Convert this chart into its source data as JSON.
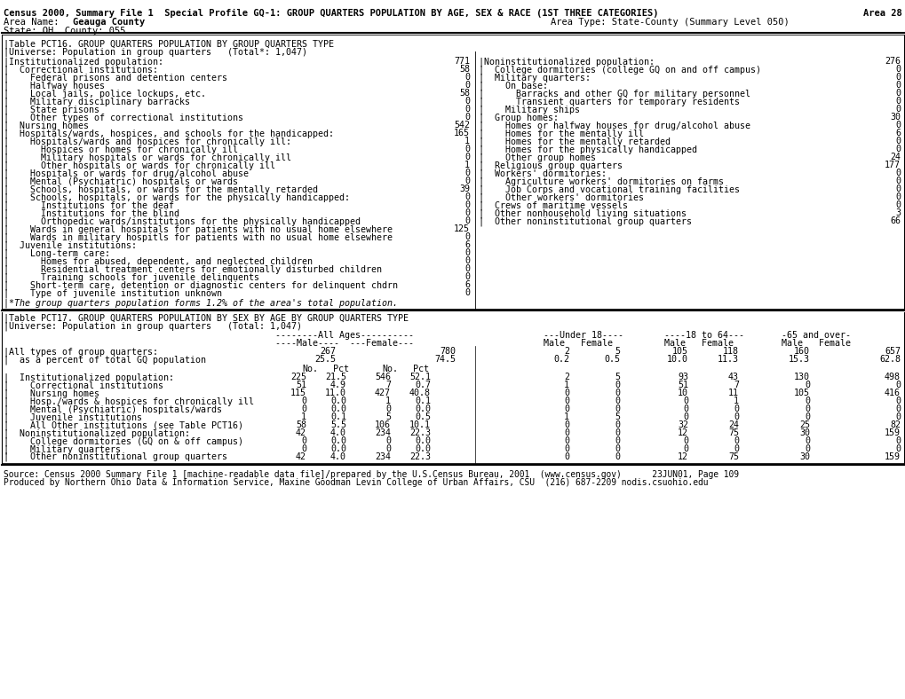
{
  "title_line1": "Census 2000, Summary File 1  Special Profile GQ-1: GROUP QUARTERS POPULATION BY AGE, SEX & RACE (1ST THREE CATEGORIES)",
  "title_area": "Area 28",
  "area_name_label": "Area Name: ",
  "area_name_bold": "Geauga County",
  "area_type": "Area Type: State-County (Summary Level 050)",
  "state_county": "State: OH  County: 055",
  "bg_color": "#ffffff",
  "font_size": 7.2,
  "title_font_size": 7.5,
  "table1_header": "|Table PCT16. GROUP QUARTERS POPULATION BY GROUP QUARTERS TYPE",
  "table1_universe": "|Universe: Population in group quarters   (Total*: 1,047)",
  "left_col": [
    [
      "|Institutionalized population:",
      "771"
    ],
    [
      "|  Correctional institutions:",
      "58"
    ],
    [
      "|    Federal prisons and detention centers",
      "0"
    ],
    [
      "|    Halfway houses",
      "0"
    ],
    [
      "|    Local jails, police lockups, etc.",
      "58"
    ],
    [
      "|    Military disciplinary barracks",
      "0"
    ],
    [
      "|    State prisons",
      "0"
    ],
    [
      "|    Other types of correctional institutions",
      "0"
    ],
    [
      "|  Nursing homes",
      "542"
    ],
    [
      "|  Hospitals/wards, hospices, and schools for the handicapped:",
      "165"
    ],
    [
      "|    Hospitals/wards and hospices for chronically ill:",
      "1"
    ],
    [
      "|      Hospices or homes for chronically ill",
      "0"
    ],
    [
      "|      Military hospitals or wards for chronically ill",
      "0"
    ],
    [
      "|      Other hospitals or wards for chronically ill",
      "1"
    ],
    [
      "|    Hospitals or wards for drug/alcohol abuse",
      "0"
    ],
    [
      "|    Mental (Psychiatric) hospitals or wards",
      "0"
    ],
    [
      "|    Schools, hospitals, or wards for the mentally retarded",
      "39"
    ],
    [
      "|    Schools, hospitals, or wards for the physically handicapped:",
      "0"
    ],
    [
      "|      Institutions for the deaf",
      "0"
    ],
    [
      "|      Institutions for the blind",
      "0"
    ],
    [
      "|      Orthopedic wards/institutions for the physically handicapped",
      "0"
    ],
    [
      "|    Wards in general hospitals for patients with no usual home elsewhere",
      "125"
    ],
    [
      "|    Wards in military hospitls for patients with no usual home elsewhere",
      "0"
    ],
    [
      "|  Juvenile institutions:",
      "6"
    ],
    [
      "|    Long-term care:",
      "0"
    ],
    [
      "|      Homes for abused, dependent, and neglected children",
      "0"
    ],
    [
      "|      Residential treatment centers for emotionally disturbed children",
      "0"
    ],
    [
      "|      Training schools for juvenile delinquents",
      "0"
    ],
    [
      "|    Short-term care, detention or diagnostic centers for delinquent chdrn",
      "6"
    ],
    [
      "|    Type of juvenile institution unknown",
      "0"
    ]
  ],
  "right_col": [
    [
      "|Noninstitutionalized population:",
      "276"
    ],
    [
      "|  College dormitories (college GQ on and off campus)",
      "0"
    ],
    [
      "|  Military quarters:",
      "0"
    ],
    [
      "|    On base:",
      "0"
    ],
    [
      "|      Barracks and other GQ for military personnel",
      "0"
    ],
    [
      "|      Transient quarters for temporary residents",
      "0"
    ],
    [
      "|    Military ships",
      "0"
    ],
    [
      "|  Group homes:",
      "30"
    ],
    [
      "|    Homes or halfway houses for drug/alcohol abuse",
      "0"
    ],
    [
      "|    Homes for the mentally ill",
      "6"
    ],
    [
      "|    Homes for the mentally retarded",
      "0"
    ],
    [
      "|    Homes for the physically handicapped",
      "0"
    ],
    [
      "|    Other group homes",
      "24"
    ],
    [
      "|  Religious group quarters",
      "177"
    ],
    [
      "|  Workers' dormitories:",
      "0"
    ],
    [
      "|    Agriculture workers' dormitories on farms",
      "0"
    ],
    [
      "|    Job Corps and vocational training facilities",
      "0"
    ],
    [
      "|    Other workers' dormitories",
      "0"
    ],
    [
      "|  Crews of maritime vessels",
      "0"
    ],
    [
      "|  Other nonhousehold living situations",
      "3"
    ],
    [
      "|  Other noninstitutional group quarters",
      "66"
    ]
  ],
  "footnote": "|*The group quarters population forms 1.2% of the area's total population.",
  "table2_header": "|Table PCT17. GROUP QUARTERS POPULATION BY SEX BY AGE BY GROUP QUARTERS TYPE",
  "table2_universe": "|Universe: Population in group quarters   (Total: 1,047)",
  "table2_row1_label": "|All types of group quarters:",
  "table2_row1_vals": [
    "267",
    "780",
    "2",
    "5",
    "105",
    "118",
    "160",
    "657"
  ],
  "table2_pct_label": "|  as a percent of total GQ population",
  "table2_pct_vals": [
    "25.5",
    "74.5",
    "0.2",
    "0.5",
    "10.0",
    "11.3",
    "15.3",
    "62.8"
  ],
  "table2_rows": [
    [
      "|  Institutionalized population:",
      "225",
      "21.5",
      "546",
      "52.1",
      "2",
      "5",
      "93",
      "43",
      "130",
      "498"
    ],
    [
      "|    Correctional institutions",
      "51",
      "4.9",
      "7",
      "0.7",
      "1",
      "0",
      "51",
      "7",
      "0",
      "0"
    ],
    [
      "|    Nursing homes",
      "115",
      "11.0",
      "427",
      "40.8",
      "0",
      "0",
      "10",
      "11",
      "105",
      "416"
    ],
    [
      "|    Hosp./wards & hospices for chronically ill",
      "0",
      "0.0",
      "1",
      "0.1",
      "0",
      "0",
      "0",
      "1",
      "0",
      "0"
    ],
    [
      "|    Mental (Psychiatric) hospitals/wards",
      "0",
      "0.0",
      "0",
      "0.0",
      "0",
      "0",
      "0",
      "0",
      "0",
      "0"
    ],
    [
      "|    Juvenile institutions",
      "1",
      "0.1",
      "5",
      "0.5",
      "1",
      "5",
      "0",
      "0",
      "0",
      "0"
    ],
    [
      "|    All Other institutions (see Table PCT16)",
      "58",
      "5.5",
      "106",
      "10.1",
      "0",
      "0",
      "32",
      "24",
      "25",
      "82"
    ],
    [
      "|  Noninstitutionalized population:",
      "42",
      "4.0",
      "234",
      "22.3",
      "0",
      "0",
      "12",
      "75",
      "30",
      "159"
    ],
    [
      "|    College dormitories (GQ on & off campus)",
      "0",
      "0.0",
      "0",
      "0.0",
      "0",
      "0",
      "0",
      "0",
      "0",
      "0"
    ],
    [
      "|    Military quarters",
      "0",
      "0.0",
      "0",
      "0.0",
      "0",
      "0",
      "0",
      "0",
      "0",
      "0"
    ],
    [
      "|    Other noninstitutional group quarters",
      "42",
      "4.0",
      "234",
      "22.3",
      "0",
      "0",
      "12",
      "75",
      "30",
      "159"
    ]
  ],
  "source_line1": "Source: Census 2000 Summary File 1 [machine-readable data file]/prepared by the U.S.Census Bureau, 2001  (www.census.gov)      23JUN01, Page 109",
  "source_line2": "Produced by Northern Ohio Data & Information Service, Maxine Goodman Levin College of Urban Affairs, CSU  (216) 687-2209 nodis.csuohio.edu"
}
